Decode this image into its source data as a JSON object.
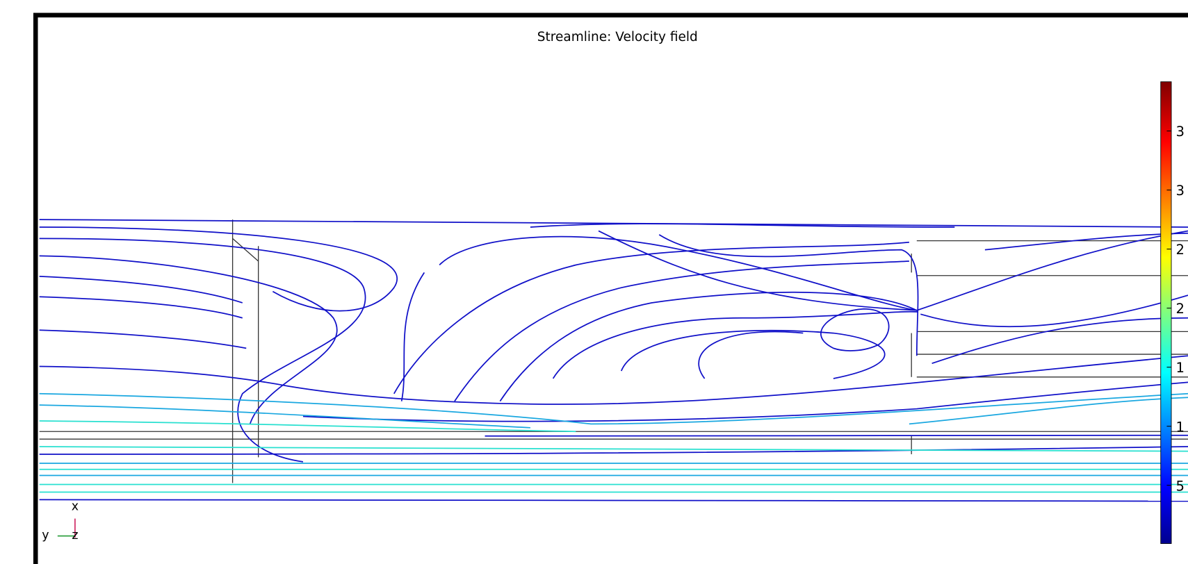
{
  "plot": {
    "title": "Streamline: Velocity field",
    "colorbar_labels": [
      "3",
      "3",
      "2",
      "2",
      "1",
      "1",
      "5"
    ],
    "axes": {
      "x": "x",
      "y": "y",
      "z": "z"
    }
  }
}
